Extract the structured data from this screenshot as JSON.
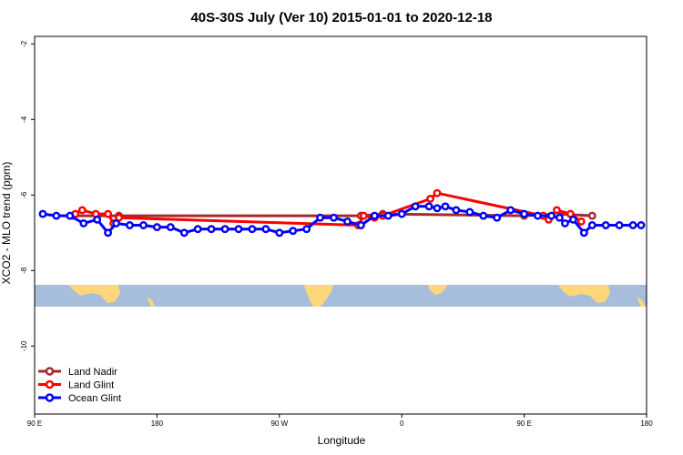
{
  "chart_data": {
    "type": "line",
    "title": "40S-30S July (Ver 10)   2015-01-01 to 2020-12-18",
    "xlabel": "Longitude",
    "ylabel": "XCO2 - MLO trend (ppm)",
    "xlim": [
      90,
      540
    ],
    "ylim": [
      -11.8,
      -1.8
    ],
    "x_ticks": [
      {
        "value": 90,
        "label": "90 E"
      },
      {
        "value": 180,
        "label": "180"
      },
      {
        "value": 270,
        "label": "90 W"
      },
      {
        "value": 360,
        "label": "0"
      },
      {
        "value": 450,
        "label": "90 E"
      },
      {
        "value": 540,
        "label": "180"
      }
    ],
    "y_ticks": [
      {
        "value": -2,
        "label": "-2"
      },
      {
        "value": -4,
        "label": "-4"
      },
      {
        "value": -6,
        "label": "-6"
      },
      {
        "value": -8,
        "label": "-8"
      },
      {
        "value": -10,
        "label": "-10"
      }
    ],
    "legend_position": "bottom-left",
    "series": [
      {
        "name": "Land Nadir",
        "color": "#a52a2a",
        "x": [
          118,
          152,
          330,
          346,
          450,
          474,
          500
        ],
        "y": [
          -6.55,
          -6.55,
          -6.55,
          -6.5,
          -6.55,
          -6.5,
          -6.55
        ]
      },
      {
        "name": "Land Glint",
        "color": "#ff0000",
        "x": [
          120,
          125,
          135,
          144,
          148,
          152,
          328,
          332,
          340,
          346,
          381,
          386,
          464,
          468,
          474,
          484,
          492
        ],
        "y": [
          -6.5,
          -6.4,
          -6.5,
          -6.5,
          -6.75,
          -6.6,
          -6.8,
          -6.55,
          -6.6,
          -6.55,
          -6.1,
          -5.95,
          -6.55,
          -6.65,
          -6.4,
          -6.5,
          -6.7
        ]
      },
      {
        "name": "Ocean Glint",
        "color": "#0000ff",
        "x": [
          96,
          106,
          116,
          126,
          136,
          144,
          150,
          160,
          170,
          180,
          190,
          200,
          210,
          220,
          230,
          240,
          250,
          260,
          270,
          280,
          290,
          300,
          310,
          320,
          330,
          340,
          350,
          360,
          370,
          380,
          386,
          392,
          400,
          410,
          420,
          430,
          440,
          450,
          460,
          470,
          476,
          480,
          486,
          494,
          500,
          510,
          520,
          530,
          536
        ],
        "y": [
          -6.5,
          -6.55,
          -6.55,
          -6.75,
          -6.65,
          -7.0,
          -6.75,
          -6.8,
          -6.8,
          -6.85,
          -6.85,
          -7.0,
          -6.9,
          -6.9,
          -6.9,
          -6.9,
          -6.9,
          -6.9,
          -7.0,
          -6.95,
          -6.9,
          -6.6,
          -6.6,
          -6.7,
          -6.8,
          -6.55,
          -6.55,
          -6.5,
          -6.3,
          -6.3,
          -6.35,
          -6.3,
          -6.4,
          -6.45,
          -6.55,
          -6.6,
          -6.4,
          -6.5,
          -6.55,
          -6.55,
          -6.6,
          -6.75,
          -6.65,
          -7.0,
          -6.8,
          -6.8,
          -6.8,
          -6.8,
          -6.8
        ]
      }
    ]
  }
}
